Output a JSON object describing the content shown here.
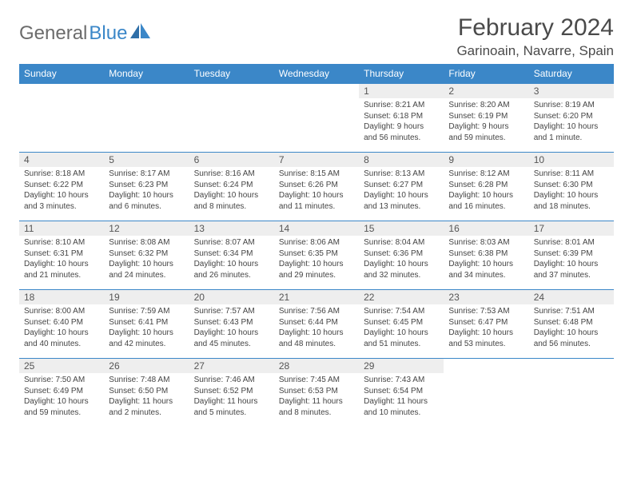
{
  "logo": {
    "text_gray": "General",
    "text_blue": "Blue"
  },
  "title": "February 2024",
  "location": "Garinoain, Navarre, Spain",
  "header_bg": "#3b87c8",
  "daynum_bg": "#eeeeee",
  "border_color": "#3b87c8",
  "day_headers": [
    "Sunday",
    "Monday",
    "Tuesday",
    "Wednesday",
    "Thursday",
    "Friday",
    "Saturday"
  ],
  "weeks": [
    [
      null,
      null,
      null,
      null,
      {
        "num": "1",
        "sunrise": "8:21 AM",
        "sunset": "6:18 PM",
        "daylight": "9 hours and 56 minutes."
      },
      {
        "num": "2",
        "sunrise": "8:20 AM",
        "sunset": "6:19 PM",
        "daylight": "9 hours and 59 minutes."
      },
      {
        "num": "3",
        "sunrise": "8:19 AM",
        "sunset": "6:20 PM",
        "daylight": "10 hours and 1 minute."
      }
    ],
    [
      {
        "num": "4",
        "sunrise": "8:18 AM",
        "sunset": "6:22 PM",
        "daylight": "10 hours and 3 minutes."
      },
      {
        "num": "5",
        "sunrise": "8:17 AM",
        "sunset": "6:23 PM",
        "daylight": "10 hours and 6 minutes."
      },
      {
        "num": "6",
        "sunrise": "8:16 AM",
        "sunset": "6:24 PM",
        "daylight": "10 hours and 8 minutes."
      },
      {
        "num": "7",
        "sunrise": "8:15 AM",
        "sunset": "6:26 PM",
        "daylight": "10 hours and 11 minutes."
      },
      {
        "num": "8",
        "sunrise": "8:13 AM",
        "sunset": "6:27 PM",
        "daylight": "10 hours and 13 minutes."
      },
      {
        "num": "9",
        "sunrise": "8:12 AM",
        "sunset": "6:28 PM",
        "daylight": "10 hours and 16 minutes."
      },
      {
        "num": "10",
        "sunrise": "8:11 AM",
        "sunset": "6:30 PM",
        "daylight": "10 hours and 18 minutes."
      }
    ],
    [
      {
        "num": "11",
        "sunrise": "8:10 AM",
        "sunset": "6:31 PM",
        "daylight": "10 hours and 21 minutes."
      },
      {
        "num": "12",
        "sunrise": "8:08 AM",
        "sunset": "6:32 PM",
        "daylight": "10 hours and 24 minutes."
      },
      {
        "num": "13",
        "sunrise": "8:07 AM",
        "sunset": "6:34 PM",
        "daylight": "10 hours and 26 minutes."
      },
      {
        "num": "14",
        "sunrise": "8:06 AM",
        "sunset": "6:35 PM",
        "daylight": "10 hours and 29 minutes."
      },
      {
        "num": "15",
        "sunrise": "8:04 AM",
        "sunset": "6:36 PM",
        "daylight": "10 hours and 32 minutes."
      },
      {
        "num": "16",
        "sunrise": "8:03 AM",
        "sunset": "6:38 PM",
        "daylight": "10 hours and 34 minutes."
      },
      {
        "num": "17",
        "sunrise": "8:01 AM",
        "sunset": "6:39 PM",
        "daylight": "10 hours and 37 minutes."
      }
    ],
    [
      {
        "num": "18",
        "sunrise": "8:00 AM",
        "sunset": "6:40 PM",
        "daylight": "10 hours and 40 minutes."
      },
      {
        "num": "19",
        "sunrise": "7:59 AM",
        "sunset": "6:41 PM",
        "daylight": "10 hours and 42 minutes."
      },
      {
        "num": "20",
        "sunrise": "7:57 AM",
        "sunset": "6:43 PM",
        "daylight": "10 hours and 45 minutes."
      },
      {
        "num": "21",
        "sunrise": "7:56 AM",
        "sunset": "6:44 PM",
        "daylight": "10 hours and 48 minutes."
      },
      {
        "num": "22",
        "sunrise": "7:54 AM",
        "sunset": "6:45 PM",
        "daylight": "10 hours and 51 minutes."
      },
      {
        "num": "23",
        "sunrise": "7:53 AM",
        "sunset": "6:47 PM",
        "daylight": "10 hours and 53 minutes."
      },
      {
        "num": "24",
        "sunrise": "7:51 AM",
        "sunset": "6:48 PM",
        "daylight": "10 hours and 56 minutes."
      }
    ],
    [
      {
        "num": "25",
        "sunrise": "7:50 AM",
        "sunset": "6:49 PM",
        "daylight": "10 hours and 59 minutes."
      },
      {
        "num": "26",
        "sunrise": "7:48 AM",
        "sunset": "6:50 PM",
        "daylight": "11 hours and 2 minutes."
      },
      {
        "num": "27",
        "sunrise": "7:46 AM",
        "sunset": "6:52 PM",
        "daylight": "11 hours and 5 minutes."
      },
      {
        "num": "28",
        "sunrise": "7:45 AM",
        "sunset": "6:53 PM",
        "daylight": "11 hours and 8 minutes."
      },
      {
        "num": "29",
        "sunrise": "7:43 AM",
        "sunset": "6:54 PM",
        "daylight": "11 hours and 10 minutes."
      },
      null,
      null
    ]
  ],
  "labels": {
    "sunrise": "Sunrise: ",
    "sunset": "Sunset: ",
    "daylight": "Daylight: "
  }
}
